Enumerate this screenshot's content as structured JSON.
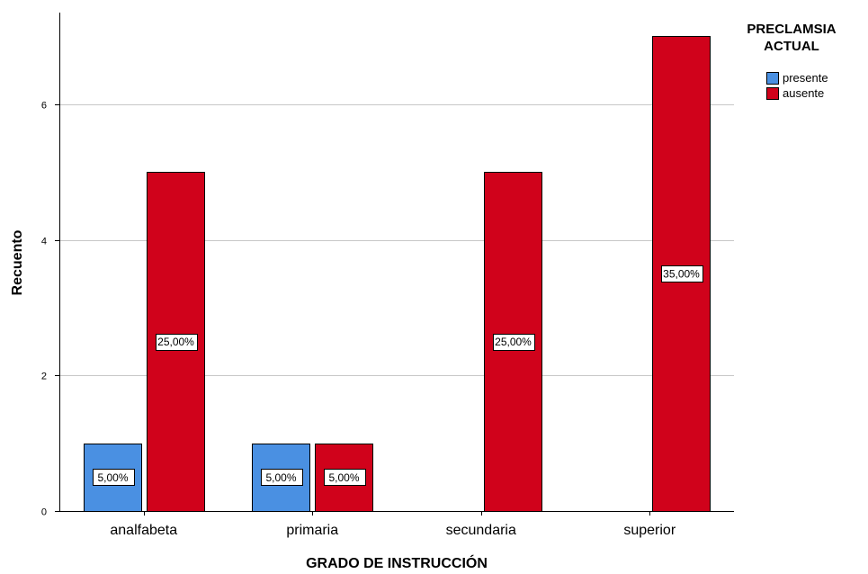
{
  "chart_data": {
    "type": "bar",
    "xlabel": "GRADO DE INSTRUCCIÓN",
    "ylabel": "Recuento",
    "ylim": [
      0,
      7.35
    ],
    "yticks": [
      0,
      2,
      4,
      6
    ],
    "grid": true,
    "legend_position": "top-right",
    "legend_title": [
      "PRECLAMSIA",
      "ACTUAL"
    ],
    "categories": [
      "analfabeta",
      "primaria",
      "secundaria",
      "superior"
    ],
    "series": [
      {
        "name": "presente",
        "color": "#4a90e2",
        "values": [
          1,
          1,
          0,
          0
        ],
        "labels": [
          "5,00%",
          "5,00%",
          "",
          ""
        ]
      },
      {
        "name": "ausente",
        "color": "#d0021b",
        "values": [
          5,
          1,
          5,
          7
        ],
        "labels": [
          "25,00%",
          "5,00%",
          "25,00%",
          "35,00%"
        ]
      }
    ]
  }
}
